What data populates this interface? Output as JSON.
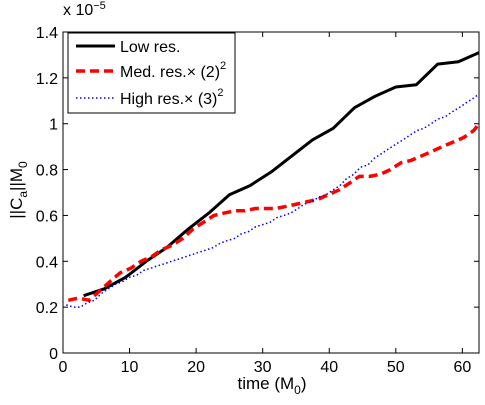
{
  "chart_data": {
    "type": "line",
    "title": "",
    "xlabel_main": "time (M",
    "xlabel_sub": "0",
    "xlabel_tail": ")",
    "ylabel_main": "||C",
    "ylabel_sub1": "a",
    "ylabel_mid": "||M",
    "ylabel_sub2": "0",
    "y_multiplier_base": "x 10",
    "y_multiplier_exp": "−5",
    "xlim": [
      0,
      62.5
    ],
    "ylim": [
      0,
      1.4
    ],
    "xticks": [
      0,
      10,
      20,
      30,
      40,
      50,
      60
    ],
    "xtick_labels": [
      "0",
      "10",
      "20",
      "30",
      "40",
      "50",
      "60"
    ],
    "yticks": [
      0,
      0.2,
      0.4,
      0.6,
      0.8,
      1.0,
      1.2,
      1.4
    ],
    "ytick_labels": [
      "0",
      "0.2",
      "0.4",
      "0.6",
      "0.8",
      "1",
      "1.2",
      "1.4"
    ],
    "grid": false,
    "legend_position": "top-left",
    "series": [
      {
        "name": "Low res.",
        "legend_main": "Low res.",
        "legend_sup": "",
        "color": "#000000",
        "style": "solid",
        "x": [
          3.1,
          6.2,
          9.4,
          12.5,
          15.6,
          18.8,
          21.9,
          25.0,
          28.1,
          31.3,
          34.4,
          37.5,
          40.6,
          43.8,
          46.9,
          50.0,
          53.1,
          56.3,
          59.4,
          62.5
        ],
        "y": [
          0.25,
          0.28,
          0.33,
          0.4,
          0.46,
          0.54,
          0.61,
          0.69,
          0.73,
          0.79,
          0.86,
          0.93,
          0.98,
          1.07,
          1.12,
          1.16,
          1.17,
          1.26,
          1.27,
          1.31
        ]
      },
      {
        "name": "Med. res. × (2)^2",
        "legend_main": "Med. res.× (2)",
        "legend_sup": "2",
        "color": "#ff0000",
        "style": "dashed",
        "x": [
          0.8,
          2.3,
          3.9,
          5.5,
          7.0,
          8.6,
          10.2,
          11.7,
          13.3,
          14.8,
          16.4,
          18.0,
          19.5,
          21.1,
          22.7,
          24.2,
          25.8,
          27.3,
          28.9,
          30.5,
          32.0,
          33.6,
          35.2,
          36.7,
          38.3,
          39.8,
          41.4,
          43.0,
          44.5,
          46.1,
          47.7,
          49.2,
          50.8,
          52.3,
          53.9,
          55.5,
          57.0,
          58.6,
          60.2,
          61.7,
          62.5
        ],
        "y": [
          0.23,
          0.24,
          0.23,
          0.27,
          0.31,
          0.35,
          0.37,
          0.4,
          0.42,
          0.45,
          0.47,
          0.5,
          0.54,
          0.57,
          0.6,
          0.61,
          0.62,
          0.62,
          0.63,
          0.63,
          0.63,
          0.64,
          0.65,
          0.66,
          0.67,
          0.69,
          0.71,
          0.74,
          0.77,
          0.77,
          0.78,
          0.8,
          0.83,
          0.84,
          0.86,
          0.88,
          0.9,
          0.92,
          0.94,
          0.97,
          1.0
        ]
      },
      {
        "name": "High res. × (3)^2",
        "legend_main": "High res.× (3)",
        "legend_sup": "2",
        "color": "#0000ff",
        "style": "dotted",
        "x": [
          0.5,
          1.6,
          2.6,
          3.7,
          4.7,
          5.8,
          6.8,
          7.9,
          8.9,
          10.0,
          11.1,
          12.1,
          13.2,
          14.2,
          15.3,
          16.3,
          17.4,
          18.4,
          19.5,
          20.5,
          21.6,
          22.6,
          23.7,
          24.7,
          25.8,
          26.8,
          27.9,
          28.9,
          30.0,
          31.1,
          32.1,
          33.2,
          34.2,
          35.3,
          36.3,
          37.4,
          38.4,
          39.5,
          40.5,
          41.6,
          42.6,
          43.7,
          44.7,
          45.8,
          46.8,
          47.9,
          48.9,
          50.0,
          51.1,
          52.1,
          53.2,
          54.2,
          55.3,
          56.3,
          57.4,
          58.4,
          59.5,
          60.5,
          61.6,
          62.5
        ],
        "y": [
          0.21,
          0.2,
          0.2,
          0.22,
          0.23,
          0.26,
          0.28,
          0.3,
          0.31,
          0.33,
          0.34,
          0.36,
          0.37,
          0.38,
          0.39,
          0.4,
          0.41,
          0.42,
          0.43,
          0.44,
          0.45,
          0.46,
          0.48,
          0.49,
          0.5,
          0.52,
          0.53,
          0.55,
          0.56,
          0.57,
          0.59,
          0.6,
          0.61,
          0.63,
          0.65,
          0.66,
          0.68,
          0.69,
          0.71,
          0.73,
          0.76,
          0.78,
          0.81,
          0.82,
          0.85,
          0.87,
          0.89,
          0.91,
          0.93,
          0.95,
          0.97,
          0.98,
          1.0,
          1.02,
          1.03,
          1.05,
          1.07,
          1.09,
          1.11,
          1.13
        ]
      }
    ]
  }
}
